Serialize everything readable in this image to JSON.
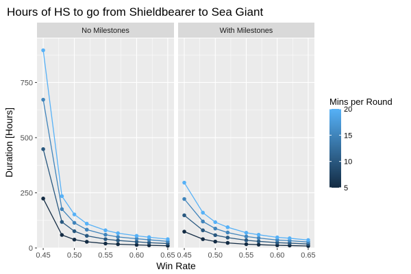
{
  "chart_data": {
    "type": "line",
    "title": "Hours of HS to go from Shieldbearer to Sea Giant",
    "xlabel": "Win Rate",
    "ylabel": "Duration [Hours]",
    "xlim": [
      0.45,
      0.65
    ],
    "ylim": [
      0,
      950
    ],
    "x_ticks": [
      0.45,
      0.5,
      0.55,
      0.6,
      0.65
    ],
    "x_tick_labels": [
      "0.45",
      "0.50",
      "0.55",
      "0.60",
      "0.65"
    ],
    "y_ticks": [
      0,
      250,
      500,
      750
    ],
    "y_tick_labels": [
      "0",
      "250",
      "500",
      "750"
    ],
    "grid": true,
    "x": [
      0.45,
      0.48,
      0.5,
      0.52,
      0.55,
      0.57,
      0.6,
      0.62,
      0.65
    ],
    "colors": {
      "low": "#132B43",
      "high": "#56B1F7",
      "panel_bg": "#EBEBEB",
      "strip_bg": "#D9D9D9",
      "grid": "#FFFFFF"
    },
    "color_scale": {
      "title": "Mins per Round",
      "min": 5,
      "max": 20,
      "breaks": [
        5,
        10,
        15,
        20
      ],
      "break_labels": [
        "5",
        "10",
        "15",
        "20"
      ]
    },
    "panels": [
      {
        "label": "No Milestones",
        "series": [
          {
            "mins": 5,
            "values": [
              224,
              59,
              38,
              28,
              20,
              17,
              14,
              12,
              10
            ]
          },
          {
            "mins": 10,
            "values": [
              448,
              118,
              76,
              55,
              40,
              34,
              28,
              24,
              20
            ]
          },
          {
            "mins": 15,
            "values": [
              672,
              176,
              114,
              83,
              60,
              50,
              42,
              37,
              30
            ]
          },
          {
            "mins": 20,
            "values": [
              896,
              235,
              152,
              110,
              80,
              67,
              55,
              49,
              40
            ]
          }
        ]
      },
      {
        "label": "With Milestones",
        "series": [
          {
            "mins": 5,
            "values": [
              74,
              40,
              29,
              23,
              17,
              15,
              12,
              11,
              9
            ]
          },
          {
            "mins": 10,
            "values": [
              148,
              80,
              58,
              47,
              35,
              30,
              24,
              22,
              18
            ]
          },
          {
            "mins": 15,
            "values": [
              222,
              120,
              88,
              70,
              52,
              45,
              36,
              33,
              27
            ]
          },
          {
            "mins": 20,
            "values": [
              296,
              160,
              117,
              94,
              69,
              60,
              48,
              44,
              36
            ]
          }
        ]
      }
    ]
  }
}
